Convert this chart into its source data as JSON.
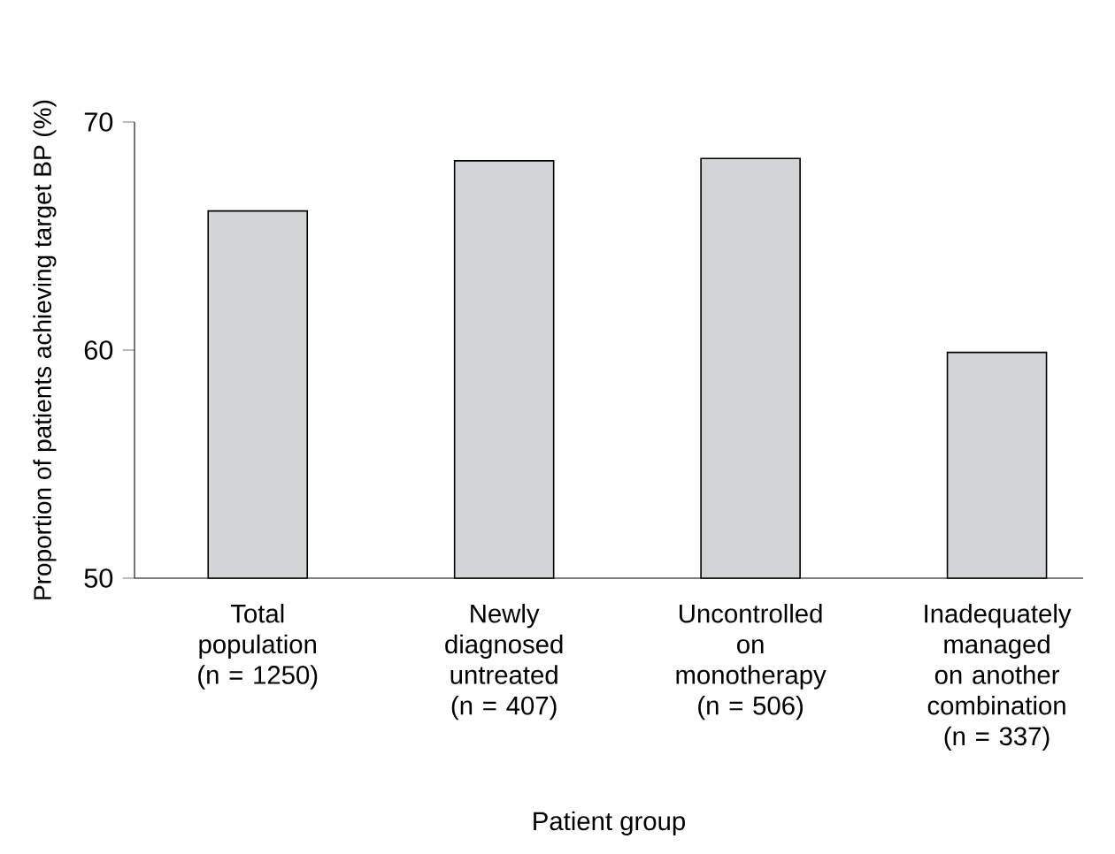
{
  "chart_data": {
    "type": "bar",
    "xlabel": "Patient group",
    "ylabel": "Proportion of patients achieving target BP (%)",
    "categories": [
      "Total population (n = 1250)",
      "Newly diagnosed untreated (n = 407)",
      "Uncontrolled on monotherapy (n = 506)",
      "Inadequately managed on another combination (n = 337)"
    ],
    "values": [
      66.1,
      68.3,
      68.4,
      59.9
    ],
    "color": "#d3d4d6",
    "ylim": [
      50,
      70
    ],
    "yticks": [
      50,
      60,
      70
    ]
  }
}
